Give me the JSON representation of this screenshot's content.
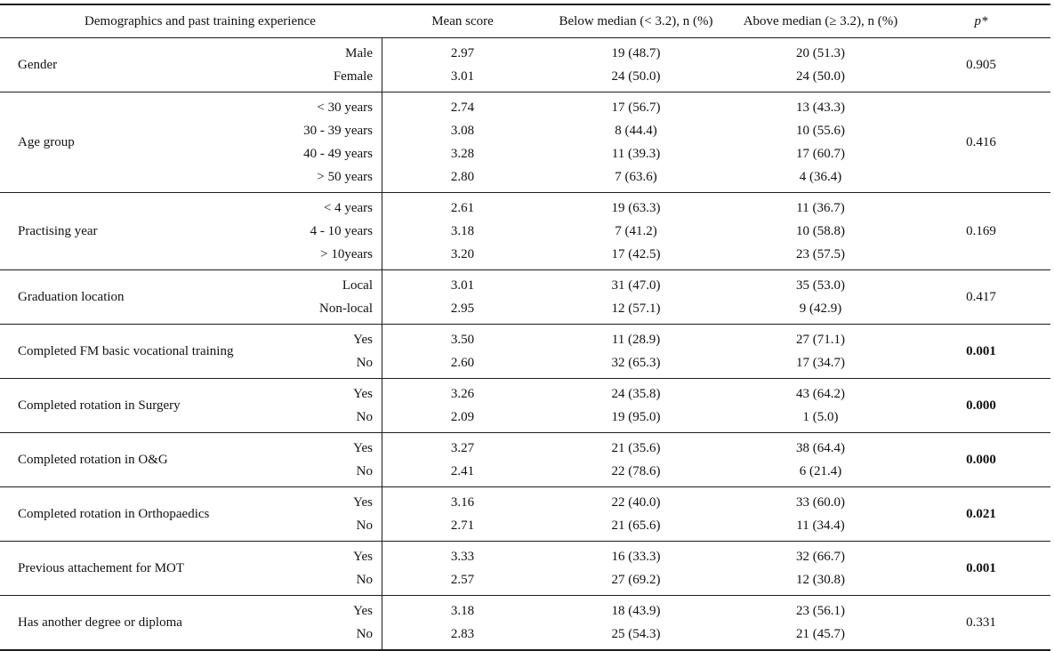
{
  "table": {
    "headers": {
      "col1": "Demographics and past training experience",
      "mean": "Mean score",
      "below": "Below median (< 3.2), n (%)",
      "above": "Above median (≥ 3.2), n (%)",
      "p": "p*"
    },
    "sections": [
      {
        "label": "Gender",
        "rows": [
          {
            "sub": "Male",
            "mean": "2.97",
            "below": "19 (48.7)",
            "above": "20 (51.3)"
          },
          {
            "sub": "Female",
            "mean": "3.01",
            "below": "24 (50.0)",
            "above": "24 (50.0)"
          }
        ],
        "p": "0.905",
        "p_bold": false
      },
      {
        "label": "Age group",
        "rows": [
          {
            "sub": "< 30 years",
            "mean": "2.74",
            "below": "17 (56.7)",
            "above": "13 (43.3)"
          },
          {
            "sub": "30 - 39 years",
            "mean": "3.08",
            "below": "8 (44.4)",
            "above": "10 (55.6)"
          },
          {
            "sub": "40 - 49 years",
            "mean": "3.28",
            "below": "11 (39.3)",
            "above": "17 (60.7)"
          },
          {
            "sub": "> 50 years",
            "mean": "2.80",
            "below": "7 (63.6)",
            "above": "4 (36.4)"
          }
        ],
        "p": "0.416",
        "p_bold": false
      },
      {
        "label": "Practising year",
        "rows": [
          {
            "sub": "< 4 years",
            "mean": "2.61",
            "below": "19 (63.3)",
            "above": "11 (36.7)"
          },
          {
            "sub": "4 - 10 years",
            "mean": "3.18",
            "below": "7 (41.2)",
            "above": "10 (58.8)"
          },
          {
            "sub": "> 10years",
            "mean": "3.20",
            "below": "17 (42.5)",
            "above": "23 (57.5)"
          }
        ],
        "p": "0.169",
        "p_bold": false
      },
      {
        "label": "Graduation location",
        "rows": [
          {
            "sub": "Local",
            "mean": "3.01",
            "below": "31 (47.0)",
            "above": "35 (53.0)"
          },
          {
            "sub": "Non-local",
            "mean": "2.95",
            "below": "12 (57.1)",
            "above": "9 (42.9)"
          }
        ],
        "p": "0.417",
        "p_bold": false
      },
      {
        "label": "Completed FM basic vocational training",
        "rows": [
          {
            "sub": "Yes",
            "mean": "3.50",
            "below": "11 (28.9)",
            "above": "27 (71.1)"
          },
          {
            "sub": "No",
            "mean": "2.60",
            "below": "32 (65.3)",
            "above": "17 (34.7)"
          }
        ],
        "p": "0.001",
        "p_bold": true
      },
      {
        "label": "Completed rotation in Surgery",
        "rows": [
          {
            "sub": "Yes",
            "mean": "3.26",
            "below": "24 (35.8)",
            "above": "43 (64.2)"
          },
          {
            "sub": "No",
            "mean": "2.09",
            "below": "19 (95.0)",
            "above": "1 (5.0)"
          }
        ],
        "p": "0.000",
        "p_bold": true
      },
      {
        "label": "Completed rotation in O&G",
        "rows": [
          {
            "sub": "Yes",
            "mean": "3.27",
            "below": "21 (35.6)",
            "above": "38 (64.4)"
          },
          {
            "sub": "No",
            "mean": "2.41",
            "below": "22 (78.6)",
            "above": "6 (21.4)"
          }
        ],
        "p": "0.000",
        "p_bold": true
      },
      {
        "label": "Completed rotation in Orthopaedics",
        "rows": [
          {
            "sub": "Yes",
            "mean": "3.16",
            "below": "22 (40.0)",
            "above": "33 (60.0)"
          },
          {
            "sub": "No",
            "mean": "2.71",
            "below": "21 (65.6)",
            "above": "11 (34.4)"
          }
        ],
        "p": "0.021",
        "p_bold": true
      },
      {
        "label": "Previous attachement for  MOT",
        "rows": [
          {
            "sub": "Yes",
            "mean": "3.33",
            "below": "16 (33.3)",
            "above": "32 (66.7)"
          },
          {
            "sub": "No",
            "mean": "2.57",
            "below": "27 (69.2)",
            "above": "12 (30.8)"
          }
        ],
        "p": "0.001",
        "p_bold": true
      },
      {
        "label": "Has another degree or diploma",
        "rows": [
          {
            "sub": "Yes",
            "mean": "3.18",
            "below": "18 (43.9)",
            "above": "23 (56.1)"
          },
          {
            "sub": "No",
            "mean": "2.83",
            "below": "25 (54.3)",
            "above": "21 (45.7)"
          }
        ],
        "p": "0.331",
        "p_bold": false
      }
    ]
  }
}
